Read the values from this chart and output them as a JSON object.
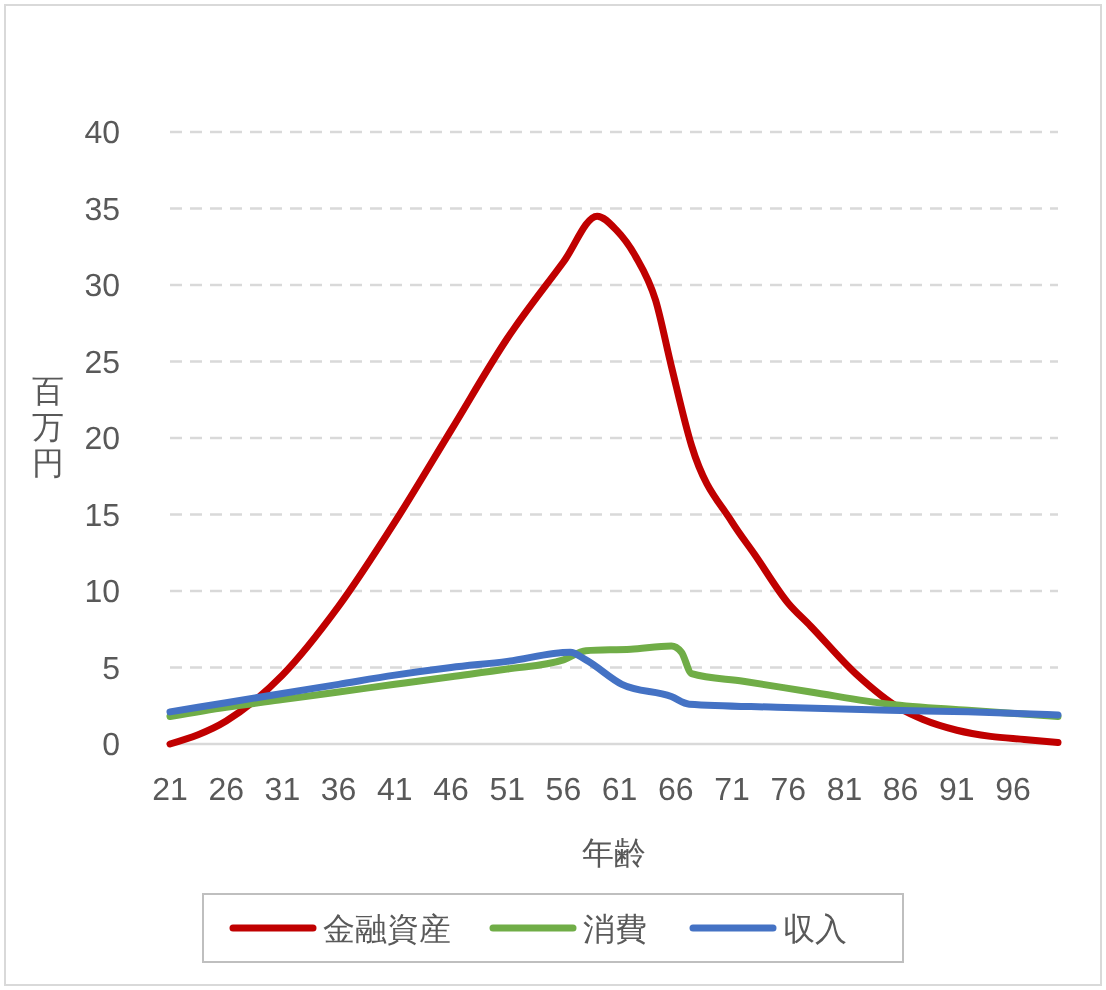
{
  "chart_data": {
    "type": "line",
    "xlabel": "年齢",
    "ylabel": "百万円",
    "xlim": [
      21,
      100
    ],
    "xticks": [
      21,
      26,
      31,
      36,
      41,
      46,
      51,
      56,
      61,
      66,
      71,
      76,
      81,
      86,
      91,
      96
    ],
    "ylim": [
      0,
      40
    ],
    "yticks": [
      0,
      5,
      10,
      15,
      20,
      25,
      30,
      35,
      40
    ],
    "grid": "y",
    "legend": "bottom",
    "line_style": "solid",
    "marker": "none",
    "series": [
      {
        "name": "金融資産",
        "color": "#c00000",
        "x": [
          21,
          26,
          31,
          36,
          41,
          46,
          51,
          56,
          59,
          60.7,
          62.4,
          64.2,
          65.6,
          67.4,
          71,
          73,
          76,
          78,
          82,
          86,
          88,
          91,
          94,
          97,
          100
        ],
        "values": [
          0,
          1.5,
          4.5,
          9,
          14.5,
          20.5,
          26.5,
          31.5,
          34.5,
          33.6,
          31.9,
          29,
          24.7,
          19.5,
          14.5,
          12.4,
          9.2,
          7.7,
          4.6,
          2.3,
          1.6,
          0.9,
          0.5,
          0.3,
          0.1
        ]
      },
      {
        "name": "消費",
        "color": "#70ad47",
        "x": [
          21,
          26,
          31,
          36,
          41,
          46,
          51,
          56,
          58,
          62,
          65.6,
          66.5,
          67.4,
          72,
          78,
          85,
          92,
          100
        ],
        "values": [
          1.8,
          2.4,
          2.9,
          3.4,
          3.9,
          4.4,
          4.9,
          5.5,
          6.1,
          6.2,
          6.4,
          6.0,
          4.6,
          4.1,
          3.4,
          2.6,
          2.2,
          1.8
        ]
      },
      {
        "name": "収入",
        "color": "#4472c4",
        "x": [
          21,
          26,
          31,
          36,
          41,
          46,
          51,
          56.6,
          58,
          61.2,
          65.6,
          67.2,
          75,
          85,
          92,
          100
        ],
        "values": [
          2.1,
          2.7,
          3.3,
          3.9,
          4.5,
          5.0,
          5.4,
          6.0,
          5.5,
          3.9,
          3.1,
          2.6,
          2.4,
          2.2,
          2.1,
          1.9
        ]
      }
    ]
  }
}
